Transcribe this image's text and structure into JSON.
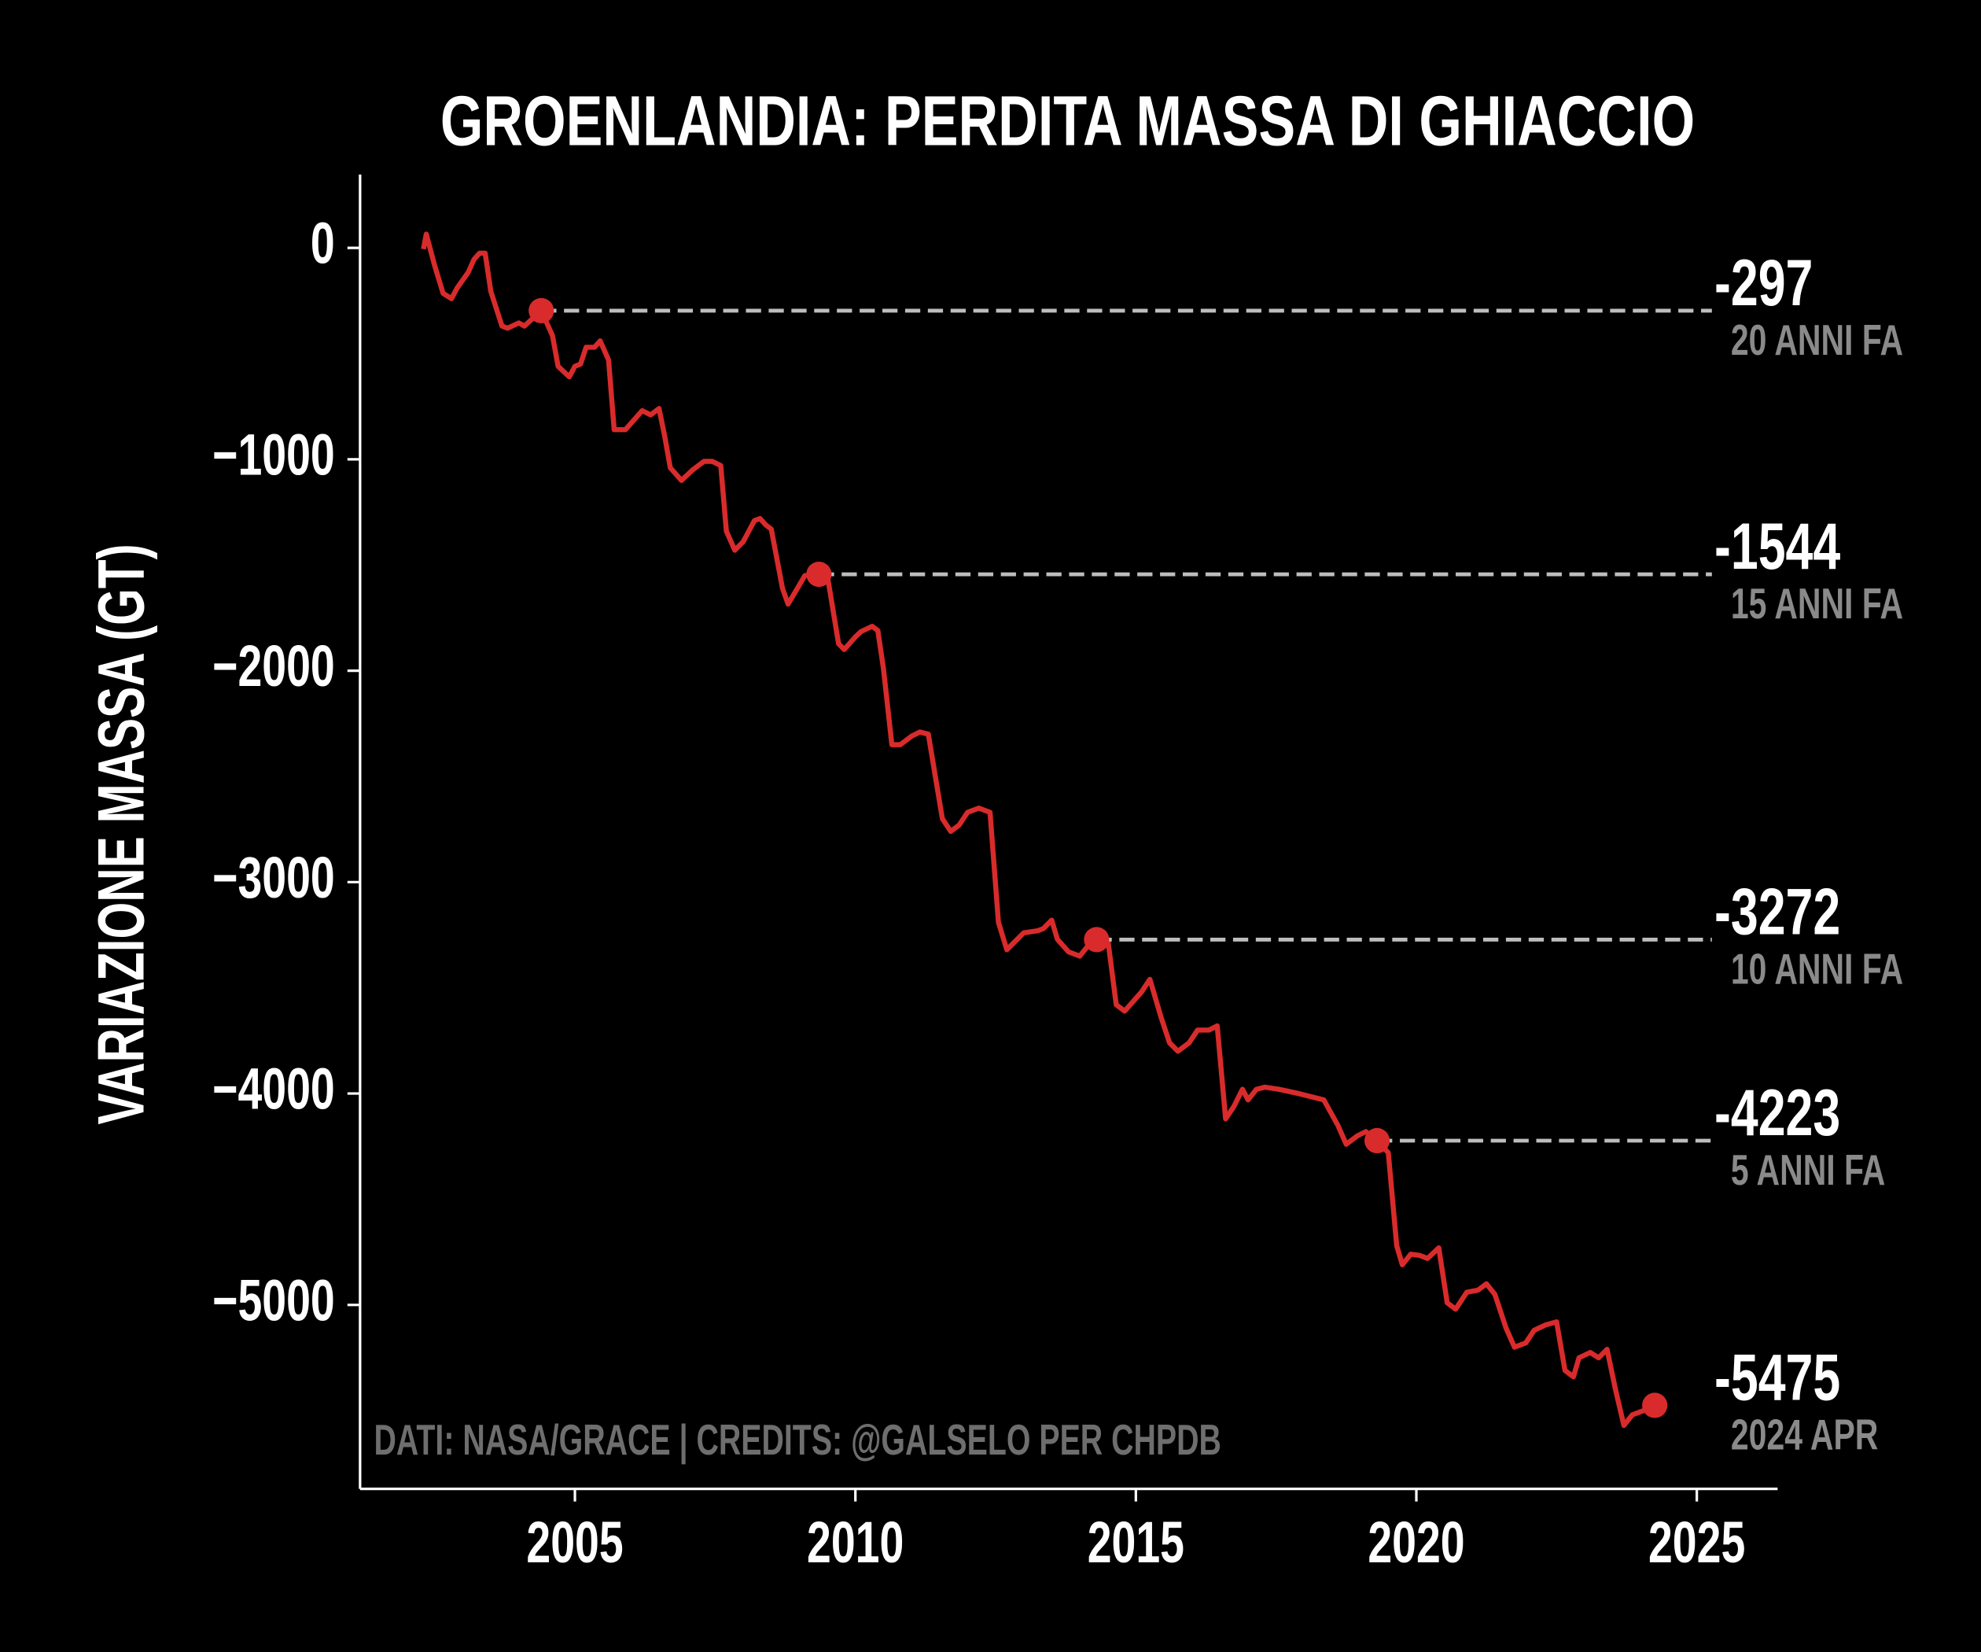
{
  "chart_data": {
    "type": "line",
    "title": "GROENLANDIA: PERDITA MASSA DI GHIACCIO",
    "ylabel": "VARIAZIONE MASSA (GT)",
    "source": "DATI: NASA/GRACE | CREDITS: @GALSELO PER CHPDB",
    "xlim": [
      2001.17,
      2026.44
    ],
    "ylim": [
      -5870,
      347
    ],
    "xticks": [
      2005,
      2010,
      2015,
      2020,
      2025
    ],
    "yticks": [
      0,
      {
        "value": -1000,
        "label": "−1000"
      },
      {
        "value": -2000,
        "label": "−2000"
      },
      {
        "value": -3000,
        "label": "−3000"
      },
      {
        "value": -4000,
        "label": "−4000"
      },
      {
        "value": -5000,
        "label": "−5000"
      }
    ],
    "series": [
      {
        "color": "#d92b2b",
        "x": [
          2002.3,
          2002.35,
          2002.5,
          2002.65,
          2002.8,
          2002.9,
          2003.1,
          2003.2,
          2003.3,
          2003.4,
          2003.5,
          2003.7,
          2003.8,
          2004.0,
          2004.1,
          2004.4,
          2004.6,
          2004.7,
          2004.9,
          2005.0,
          2005.1,
          2005.2,
          2005.35,
          2005.45,
          2005.6,
          2005.7,
          2005.9,
          2006.0,
          2006.2,
          2006.35,
          2006.5,
          2006.6,
          2006.7,
          2006.8,
          2006.9,
          2007.1,
          2007.3,
          2007.45,
          2007.6,
          2007.7,
          2007.85,
          2008.0,
          2008.2,
          2008.3,
          2008.4,
          2008.5,
          2008.7,
          2008.8,
          2008.9,
          2009.1,
          2009.35,
          2009.5,
          2009.7,
          2009.8,
          2010.0,
          2010.1,
          2010.3,
          2010.4,
          2010.5,
          2010.65,
          2010.8,
          2011.0,
          2011.15,
          2011.3,
          2011.4,
          2011.55,
          2011.7,
          2011.85,
          2012.0,
          2012.2,
          2012.4,
          2012.55,
          2012.7,
          2012.85,
          2013.0,
          2013.25,
          2013.35,
          2013.5,
          2013.6,
          2013.8,
          2014.0,
          2014.15,
          2014.3,
          2014.5,
          2014.65,
          2014.8,
          2014.9,
          2015.1,
          2015.25,
          2015.45,
          2015.6,
          2015.75,
          2015.95,
          2016.1,
          2016.3,
          2016.45,
          2016.6,
          2016.75,
          2016.9,
          2017.0,
          2017.15,
          2017.3,
          2017.55,
          2017.9,
          2018.35,
          2018.6,
          2018.75,
          2018.95,
          2019.1,
          2019.3,
          2019.5,
          2019.65,
          2019.75,
          2019.9,
          2020.05,
          2020.2,
          2020.4,
          2020.55,
          2020.7,
          2020.9,
          2021.1,
          2021.25,
          2021.4,
          2021.6,
          2021.75,
          2021.95,
          2022.1,
          2022.3,
          2022.5,
          2022.65,
          2022.8,
          2022.9,
          2023.1,
          2023.25,
          2023.4,
          2023.55,
          2023.7,
          2023.85,
          2024.05,
          2024.25
        ],
        "values": [
          -6,
          65,
          -84,
          -215,
          -240,
          -190,
          -115,
          -55,
          -25,
          -25,
          -205,
          -370,
          -380,
          -355,
          -370,
          -297,
          -415,
          -560,
          -610,
          -560,
          -550,
          -470,
          -470,
          -440,
          -530,
          -860,
          -860,
          -830,
          -770,
          -790,
          -760,
          -890,
          -1040,
          -1070,
          -1100,
          -1050,
          -1010,
          -1010,
          -1030,
          -1340,
          -1430,
          -1390,
          -1290,
          -1280,
          -1310,
          -1330,
          -1610,
          -1685,
          -1640,
          -1550,
          -1544,
          -1550,
          -1872,
          -1900,
          -1840,
          -1815,
          -1790,
          -1810,
          -1990,
          -2350,
          -2350,
          -2310,
          -2290,
          -2300,
          -2460,
          -2700,
          -2760,
          -2730,
          -2670,
          -2650,
          -2670,
          -3190,
          -3320,
          -3280,
          -3240,
          -3230,
          -3220,
          -3180,
          -3270,
          -3330,
          -3350,
          -3300,
          -3272,
          -3272,
          -3580,
          -3610,
          -3580,
          -3520,
          -3460,
          -3640,
          -3760,
          -3800,
          -3760,
          -3700,
          -3700,
          -3680,
          -4120,
          -4060,
          -3980,
          -4030,
          -3980,
          -3970,
          -3980,
          -4000,
          -4030,
          -4150,
          -4240,
          -4200,
          -4180,
          -4223,
          -4280,
          -4720,
          -4810,
          -4760,
          -4765,
          -4780,
          -4730,
          -4990,
          -5020,
          -4940,
          -4930,
          -4900,
          -4950,
          -5110,
          -5200,
          -5180,
          -5120,
          -5095,
          -5080,
          -5310,
          -5340,
          -5250,
          -5225,
          -5250,
          -5210,
          -5400,
          -5570,
          -5520,
          -5500,
          -5475
        ]
      }
    ],
    "highlights": [
      {
        "x": 2004.4,
        "value": -297,
        "label": "20 ANNI FA"
      },
      {
        "x": 2009.35,
        "value": -1544,
        "label": "15 ANNI FA"
      },
      {
        "x": 2014.3,
        "value": -3272,
        "label": "10 ANNI FA"
      },
      {
        "x": 2019.3,
        "value": -4223,
        "label": "5 ANNI FA"
      },
      {
        "x": 2024.25,
        "value": -5475,
        "label": "2024 APR"
      }
    ]
  }
}
